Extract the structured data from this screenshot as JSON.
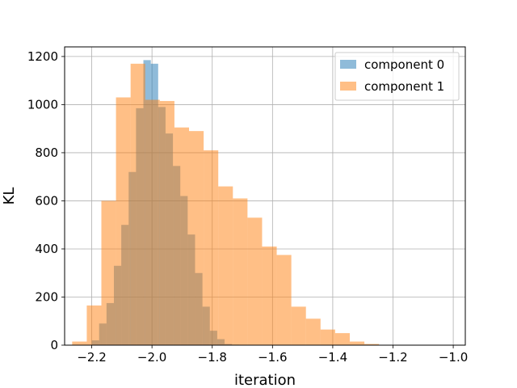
{
  "chart_data": {
    "type": "histogram",
    "xlabel": "iteration",
    "ylabel": "KL",
    "xlim": [
      -2.29,
      -0.96
    ],
    "ylim": [
      0,
      1240
    ],
    "xticks": [
      -2.2,
      -2.0,
      -1.8,
      -1.6,
      -1.4,
      -1.2,
      -1.0
    ],
    "xtick_labels": [
      "−2.2",
      "−2.0",
      "−1.8",
      "−1.6",
      "−1.4",
      "−1.2",
      "−1.0"
    ],
    "yticks": [
      0,
      200,
      400,
      600,
      800,
      1000,
      1200
    ],
    "ytick_labels": [
      "0",
      "200",
      "400",
      "600",
      "800",
      "1000",
      "1200"
    ],
    "grid": true,
    "legend_position": "top-right",
    "series": [
      {
        "name": "component 0",
        "color": "#1f77b4",
        "alpha": 0.5,
        "bin_edges": [
          -2.2,
          -2.1755,
          -2.151,
          -2.1265,
          -2.102,
          -2.0775,
          -2.053,
          -2.0285,
          -2.004,
          -1.9795,
          -1.955,
          -1.9305,
          -1.906,
          -1.8815,
          -1.857,
          -1.8325,
          -1.808,
          -1.7835,
          -1.759,
          -1.7345,
          -1.71
        ],
        "counts": [
          20,
          90,
          175,
          330,
          500,
          720,
          985,
          1185,
          1170,
          990,
          880,
          745,
          620,
          460,
          300,
          160,
          60,
          25,
          5,
          2
        ]
      },
      {
        "name": "component 1",
        "color": "#ff7f0e",
        "alpha": 0.5,
        "bin_edges": [
          -2.265,
          -2.2165,
          -2.168,
          -2.1195,
          -2.071,
          -2.0225,
          -1.974,
          -1.9255,
          -1.877,
          -1.8285,
          -1.78,
          -1.7315,
          -1.683,
          -1.6345,
          -1.586,
          -1.5375,
          -1.489,
          -1.4405,
          -1.392,
          -1.3435,
          -1.295,
          -1.2465,
          -1.198,
          -1.1495,
          -1.101,
          -1.0525,
          -1.004
        ],
        "counts": [
          15,
          165,
          600,
          1030,
          1170,
          1020,
          1015,
          905,
          890,
          810,
          660,
          610,
          530,
          410,
          375,
          160,
          110,
          65,
          50,
          15,
          5,
          1,
          0,
          0,
          0,
          0
        ]
      }
    ]
  }
}
